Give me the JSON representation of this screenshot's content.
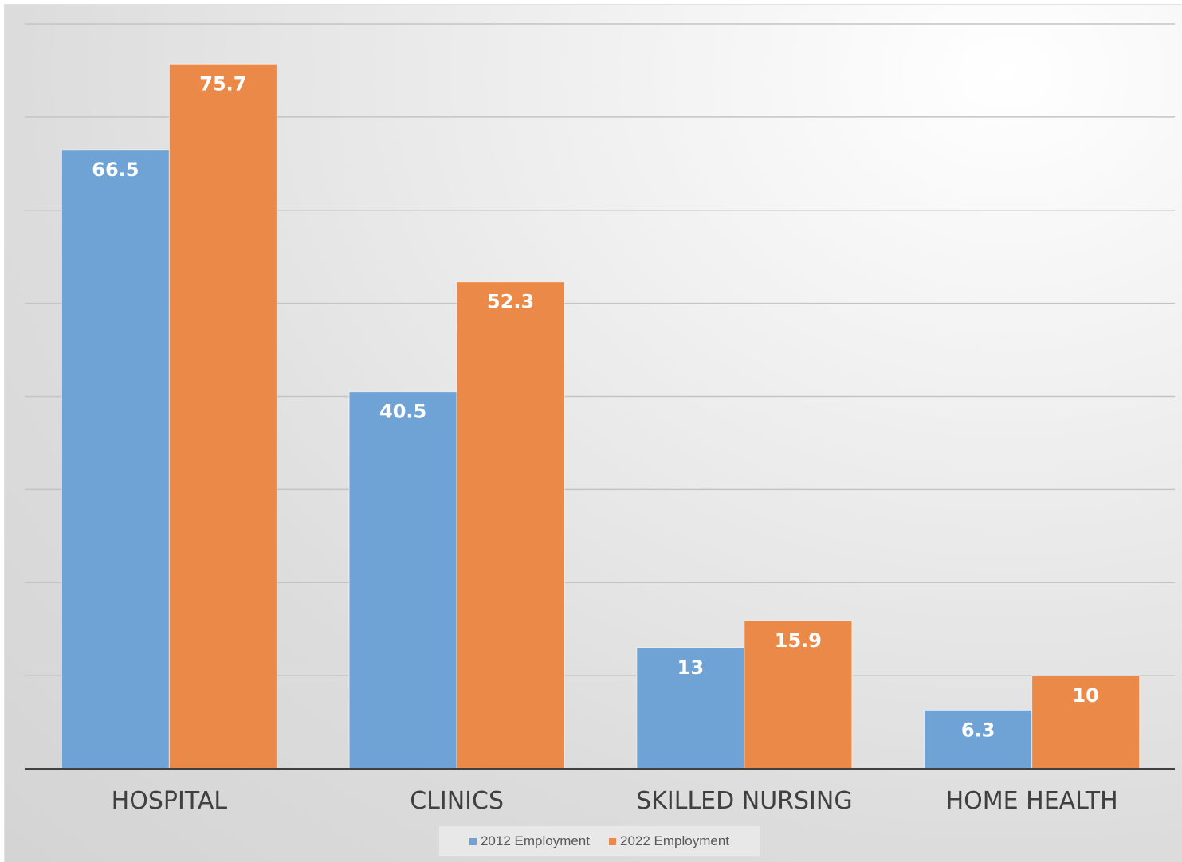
{
  "chart_data": {
    "type": "bar",
    "title": "",
    "xlabel": "",
    "ylabel": "",
    "ylim": [
      0,
      80
    ],
    "grid": true,
    "legend_position": "bottom",
    "categories": [
      "HOSPITAL",
      "CLINICS",
      "SKILLED NURSING",
      "HOME HEALTH"
    ],
    "series": [
      {
        "name": "2012 Employment",
        "color": "#6FA3D6",
        "values": [
          66.5,
          40.5,
          13,
          6.3
        ]
      },
      {
        "name": "2022 Employment",
        "color": "#EB8A48",
        "values": [
          75.7,
          52.3,
          15.9,
          10
        ]
      }
    ]
  },
  "legend": {
    "items": [
      {
        "label": "2012 Employment",
        "color": "#6FA3D6"
      },
      {
        "label": "2022 Employment",
        "color": "#EB8A48"
      }
    ]
  }
}
